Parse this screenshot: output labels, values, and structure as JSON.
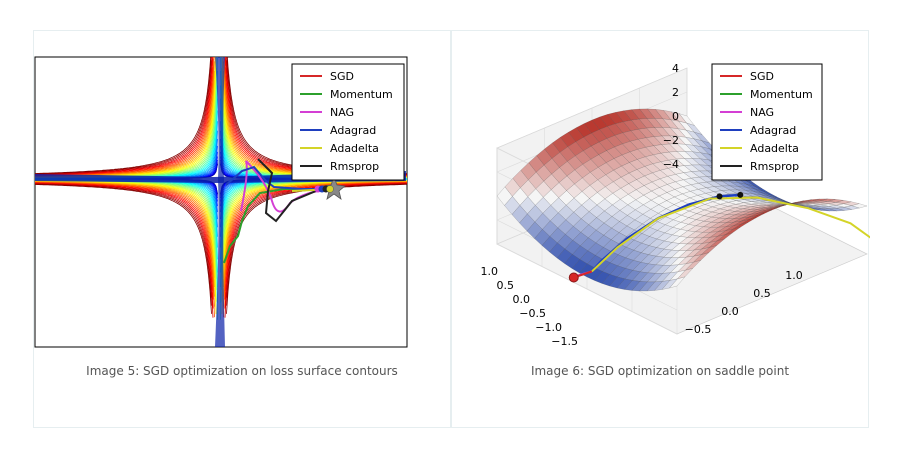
{
  "figures": [
    {
      "caption": "Image 5: SGD optimization on loss surface contours"
    },
    {
      "caption": "Image 6: SGD optimization on saddle point"
    }
  ],
  "chart_data": [
    {
      "type": "line",
      "description_kind": "contour plot with optimizer trajectories",
      "legend_position": "top-right",
      "series": [
        {
          "name": "SGD",
          "color": "#d62728"
        },
        {
          "name": "Momentum",
          "color": "#2ca02c"
        },
        {
          "name": "NAG",
          "color": "#d43fd4"
        },
        {
          "name": "Adagrad",
          "color": "#1f3fbf"
        },
        {
          "name": "Adadelta",
          "color": "#d4d428"
        },
        {
          "name": "Rmsprop",
          "color": "#222222"
        }
      ],
      "grid": false
    },
    {
      "type": "line",
      "description_kind": "3d saddle surface with optimizer trajectories",
      "legend_position": "top-right",
      "series": [
        {
          "name": "SGD",
          "color": "#d62728"
        },
        {
          "name": "Momentum",
          "color": "#2ca02c"
        },
        {
          "name": "NAG",
          "color": "#d43fd4"
        },
        {
          "name": "Adagrad",
          "color": "#1f3fbf"
        },
        {
          "name": "Adadelta",
          "color": "#d4d428"
        },
        {
          "name": "Rmsprop",
          "color": "#222222"
        }
      ],
      "z_ticks": [
        "4",
        "2",
        "0",
        "−2",
        "−4"
      ],
      "y_ticks": [
        "1.0",
        "0.5",
        "0.0",
        "−0.5",
        "−1.0",
        "−1.5"
      ],
      "x_ticks": [
        "1.0",
        "0.5",
        "0.0",
        "−0.5"
      ],
      "grid": true
    }
  ]
}
